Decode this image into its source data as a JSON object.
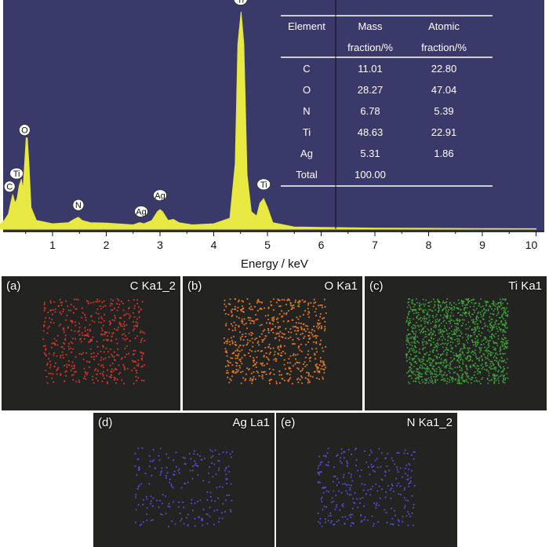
{
  "chart_data": {
    "type": "line",
    "xlabel": "Energy / keV",
    "ylabel": "",
    "xlim": [
      0,
      10
    ],
    "x_ticks": [
      "1",
      "2",
      "3",
      "4",
      "5",
      "6",
      "7",
      "8",
      "9",
      "10"
    ],
    "grid": false,
    "colors": {
      "background": "#39396a",
      "spectrum": "#e8e843",
      "axis": "#111111"
    },
    "spectrum_points": [
      [
        0.0,
        0.38
      ],
      [
        0.02,
        0.02
      ],
      [
        0.1,
        0.04
      ],
      [
        0.18,
        0.07
      ],
      [
        0.22,
        0.12
      ],
      [
        0.26,
        0.16
      ],
      [
        0.3,
        0.12
      ],
      [
        0.34,
        0.14
      ],
      [
        0.38,
        0.2
      ],
      [
        0.42,
        0.23
      ],
      [
        0.45,
        0.18
      ],
      [
        0.48,
        0.3
      ],
      [
        0.51,
        0.42
      ],
      [
        0.53,
        0.42
      ],
      [
        0.56,
        0.3
      ],
      [
        0.6,
        0.1
      ],
      [
        0.7,
        0.04
      ],
      [
        1.0,
        0.025
      ],
      [
        1.3,
        0.03
      ],
      [
        1.4,
        0.045
      ],
      [
        1.48,
        0.055
      ],
      [
        1.55,
        0.04
      ],
      [
        1.7,
        0.03
      ],
      [
        2.0,
        0.028
      ],
      [
        2.5,
        0.02
      ],
      [
        2.62,
        0.03
      ],
      [
        2.7,
        0.025
      ],
      [
        2.85,
        0.04
      ],
      [
        2.95,
        0.08
      ],
      [
        3.0,
        0.09
      ],
      [
        3.05,
        0.08
      ],
      [
        3.15,
        0.04
      ],
      [
        3.25,
        0.045
      ],
      [
        3.35,
        0.03
      ],
      [
        3.6,
        0.02
      ],
      [
        4.0,
        0.025
      ],
      [
        4.3,
        0.05
      ],
      [
        4.4,
        0.3
      ],
      [
        4.45,
        0.85
      ],
      [
        4.51,
        1.0
      ],
      [
        4.56,
        0.85
      ],
      [
        4.62,
        0.25
      ],
      [
        4.7,
        0.08
      ],
      [
        4.8,
        0.06
      ],
      [
        4.86,
        0.12
      ],
      [
        4.93,
        0.14
      ],
      [
        5.0,
        0.1
      ],
      [
        5.1,
        0.03
      ],
      [
        5.5,
        0.01
      ],
      [
        6.0,
        0.008
      ],
      [
        7.0,
        0.005
      ],
      [
        8.0,
        0.004
      ],
      [
        9.0,
        0.003
      ],
      [
        10.0,
        0.002
      ]
    ],
    "peak_labels": [
      {
        "text": "C",
        "x": 0.2,
        "y": 0.16
      },
      {
        "text": "Ti",
        "x": 0.33,
        "y": 0.22
      },
      {
        "text": "O",
        "x": 0.48,
        "y": 0.42
      },
      {
        "text": "N",
        "x": 1.48,
        "y": 0.075
      },
      {
        "text": "Ag",
        "x": 2.65,
        "y": 0.045
      },
      {
        "text": "Ag",
        "x": 3.0,
        "y": 0.12
      },
      {
        "text": "Ti",
        "x": 4.5,
        "y": 1.02
      },
      {
        "text": "Ti",
        "x": 4.93,
        "y": 0.17
      }
    ],
    "table": {
      "headers": [
        [
          "Element"
        ],
        [
          "Mass",
          "fraction/%"
        ],
        [
          "Atomic",
          "fraction/%"
        ]
      ],
      "rows": [
        [
          "C",
          "11.01",
          "22.80"
        ],
        [
          "O",
          "28.27",
          "47.04"
        ],
        [
          "N",
          "6.78",
          "5.39"
        ],
        [
          "Ti",
          "48.63",
          "22.91"
        ],
        [
          "Ag",
          "5.31",
          "1.86"
        ],
        [
          "Total",
          "100.00",
          ""
        ]
      ]
    }
  },
  "maps": [
    {
      "id": "a",
      "tag": "(a)",
      "label": "C Ka1_2",
      "dot_color": "#d8362a",
      "density": 0.35
    },
    {
      "id": "b",
      "tag": "(b)",
      "label": "O Ka1",
      "dot_color": "#e87a2a",
      "density": 0.45
    },
    {
      "id": "c",
      "tag": "(c)",
      "label": "Ti Ka1",
      "dot_color": "#3fa83a",
      "density": 1.0
    },
    {
      "id": "d",
      "tag": "(d)",
      "label": "Ag La1",
      "dot_color": "#5a4ad8",
      "density": 0.15
    },
    {
      "id": "e",
      "tag": "(e)",
      "label": "N Ka1_2",
      "dot_color": "#5a4ad8",
      "density": 0.2
    }
  ]
}
